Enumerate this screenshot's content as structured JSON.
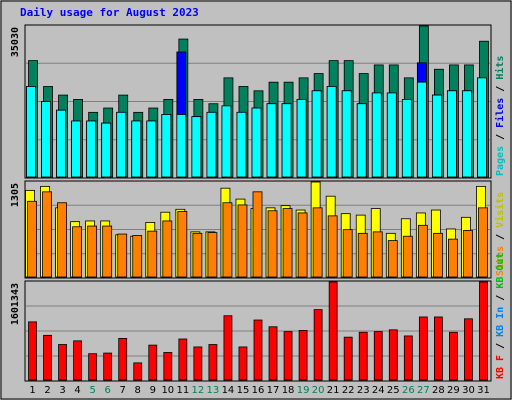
{
  "chart_data": {
    "type": "bar",
    "title": "Daily usage for August 2023",
    "categories": [
      "1",
      "2",
      "3",
      "4",
      "5",
      "6",
      "7",
      "8",
      "9",
      "10",
      "11",
      "12",
      "13",
      "14",
      "15",
      "16",
      "17",
      "18",
      "19",
      "20",
      "21",
      "22",
      "23",
      "24",
      "25",
      "26",
      "27",
      "28",
      "29",
      "30",
      "31"
    ],
    "weekend_days": [
      "5",
      "6",
      "12",
      "13",
      "19",
      "20",
      "26",
      "27"
    ],
    "panels": [
      {
        "id": "top",
        "scale_label": "35030",
        "ylim": [
          0,
          35030
        ],
        "series": [
          {
            "name": "Hits",
            "color": "#00805c",
            "values": [
              27000,
              21000,
              19000,
              18000,
              15000,
              16000,
              19000,
              15000,
              16000,
              18000,
              32000,
              18000,
              17000,
              23000,
              21000,
              20000,
              22000,
              22000,
              23000,
              24000,
              27000,
              27000,
              24000,
              26000,
              26000,
              23000,
              35030,
              25000,
              26000,
              26000,
              31500
            ]
          },
          {
            "name": "Files",
            "color": "#0000ff",
            "values": [
              21000,
              17500,
              15500,
              13000,
              13000,
              12500,
              15000,
              13000,
              13000,
              14500,
              29000,
              14000,
              15000,
              16500,
              15000,
              16000,
              17000,
              17000,
              18000,
              20000,
              21000,
              20000,
              17000,
              19500,
              19500,
              18000,
              26500,
              19000,
              20000,
              20000,
              23000
            ]
          },
          {
            "name": "Pages",
            "color": "#00ffff",
            "values": [
              21000,
              17500,
              15500,
              13000,
              13000,
              12500,
              15000,
              13000,
              13000,
              14500,
              14500,
              14000,
              15000,
              16500,
              15000,
              16000,
              17000,
              17000,
              18000,
              20000,
              21000,
              20000,
              17000,
              19500,
              19500,
              18000,
              22000,
              19000,
              20000,
              20000,
              23000
            ]
          }
        ]
      },
      {
        "id": "mid",
        "scale_label": "1305",
        "ylim": [
          0,
          1305
        ],
        "series": [
          {
            "name": "Visits",
            "color": "#ffff00",
            "values": [
              1190,
              1245,
              950,
              760,
              770,
              770,
              580,
              560,
              750,
              890,
              930,
              620,
              620,
              1220,
              1070,
              940,
              950,
              980,
              920,
              1305,
              1110,
              870,
              850,
              940,
              600,
              800,
              880,
              920,
              660,
              820,
              1245
            ]
          },
          {
            "name": "Sites",
            "color": "#ff8000",
            "values": [
              1040,
              1170,
              1020,
              690,
              700,
              700,
              590,
              570,
              630,
              770,
              900,
              600,
              610,
              1020,
              990,
              1170,
              910,
              940,
              880,
              950,
              840,
              650,
              600,
              620,
              500,
              560,
              710,
              600,
              520,
              640,
              950
            ]
          }
        ]
      },
      {
        "id": "bot",
        "scale_label": "1601343",
        "ylim": [
          0,
          1601343
        ],
        "series": [
          {
            "name": "KB In",
            "color": "#0080ff",
            "values": []
          },
          {
            "name": "KB Out",
            "color": "#00c000",
            "values": []
          },
          {
            "name": "KB F",
            "color": "#ff0000",
            "values": [
              950000,
              730000,
              580000,
              640000,
              430000,
              440000,
              680000,
              280000,
              570000,
              450000,
              670000,
              540000,
              580000,
              1050000,
              540000,
              980000,
              870000,
              790000,
              810000,
              1150000,
              1601343,
              700000,
              780000,
              790000,
              820000,
              720000,
              1030000,
              1030000,
              780000,
              1000000,
              1601343
            ]
          }
        ]
      }
    ],
    "right_labels": [
      {
        "panel": "top",
        "parts": [
          {
            "text": "Pages",
            "color": "#00c0c0"
          },
          {
            "text": " / ",
            "color": "#000000"
          },
          {
            "text": "Files",
            "color": "#0000ff"
          },
          {
            "text": " / ",
            "color": "#000000"
          },
          {
            "text": "Hits",
            "color": "#00805c"
          }
        ]
      },
      {
        "panel": "mid",
        "parts": [
          {
            "text": "Sites",
            "color": "#ff8000"
          },
          {
            "text": " / ",
            "color": "#000000"
          },
          {
            "text": "Visits",
            "color": "#c0c000"
          }
        ]
      },
      {
        "panel": "bot",
        "parts": [
          {
            "text": "KB F",
            "color": "#ff0000"
          },
          {
            "text": " / ",
            "color": "#000000"
          },
          {
            "text": "KB In",
            "color": "#0080ff"
          },
          {
            "text": " / ",
            "color": "#000000"
          },
          {
            "text": "KB Out",
            "color": "#00c000"
          }
        ]
      }
    ],
    "colors": {
      "background": "#c0c0c0",
      "plot_bg": "#c0c0c0",
      "title": "#0000ff",
      "weekday_label": "#000000",
      "weekend_label": "#00805c",
      "grid": "#808080"
    }
  }
}
